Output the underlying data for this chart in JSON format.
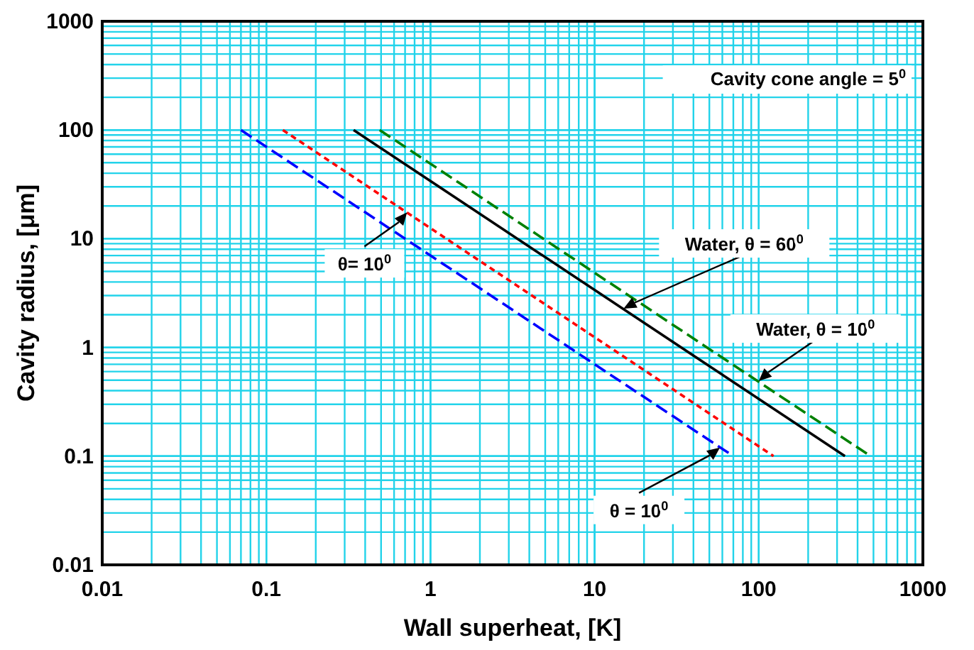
{
  "chart_data": {
    "type": "line",
    "xlabel": "Wall superheat, [K]",
    "ylabel": "Cavity radius, [μm]",
    "log": "xy",
    "grid": true,
    "xlim": [
      0.01,
      1000
    ],
    "ylim": [
      0.01,
      1000
    ],
    "xticks": [
      0.01,
      0.1,
      1,
      10,
      100,
      1000
    ],
    "yticks": [
      0.01,
      0.1,
      1,
      10,
      100,
      1000
    ],
    "series": [
      {
        "color": "#008000",
        "line_style": "dashed",
        "x": [
          0.49,
          480
        ],
        "values": [
          100,
          0.1
        ]
      },
      {
        "color": "#000000",
        "line_style": "solid",
        "x": [
          0.34,
          335
        ],
        "values": [
          100,
          0.1
        ]
      },
      {
        "color": "#ff0000",
        "line_style": "dotted",
        "x": [
          0.126,
          123
        ],
        "values": [
          100,
          0.1
        ]
      },
      {
        "color": "#0000ff",
        "line_style": "dashed",
        "x": [
          0.07,
          70
        ],
        "values": [
          100,
          0.1
        ]
      }
    ],
    "annotations": [
      "Cavity cone angle = 5$^{0}$",
      {
        "text": "Water, θ = 60$^{0}$",
        "x": 15,
        "y": 2.27
      },
      {
        "text": "Water, θ = 10$^{0}$",
        "x": 100,
        "y": 0.49
      },
      {
        "text": "θ= 10$^{0}$",
        "x": 0.72,
        "y": 17.5
      },
      {
        "text": "θ = 10$^{0}$",
        "x": 58,
        "y": 0.12
      }
    ]
  }
}
